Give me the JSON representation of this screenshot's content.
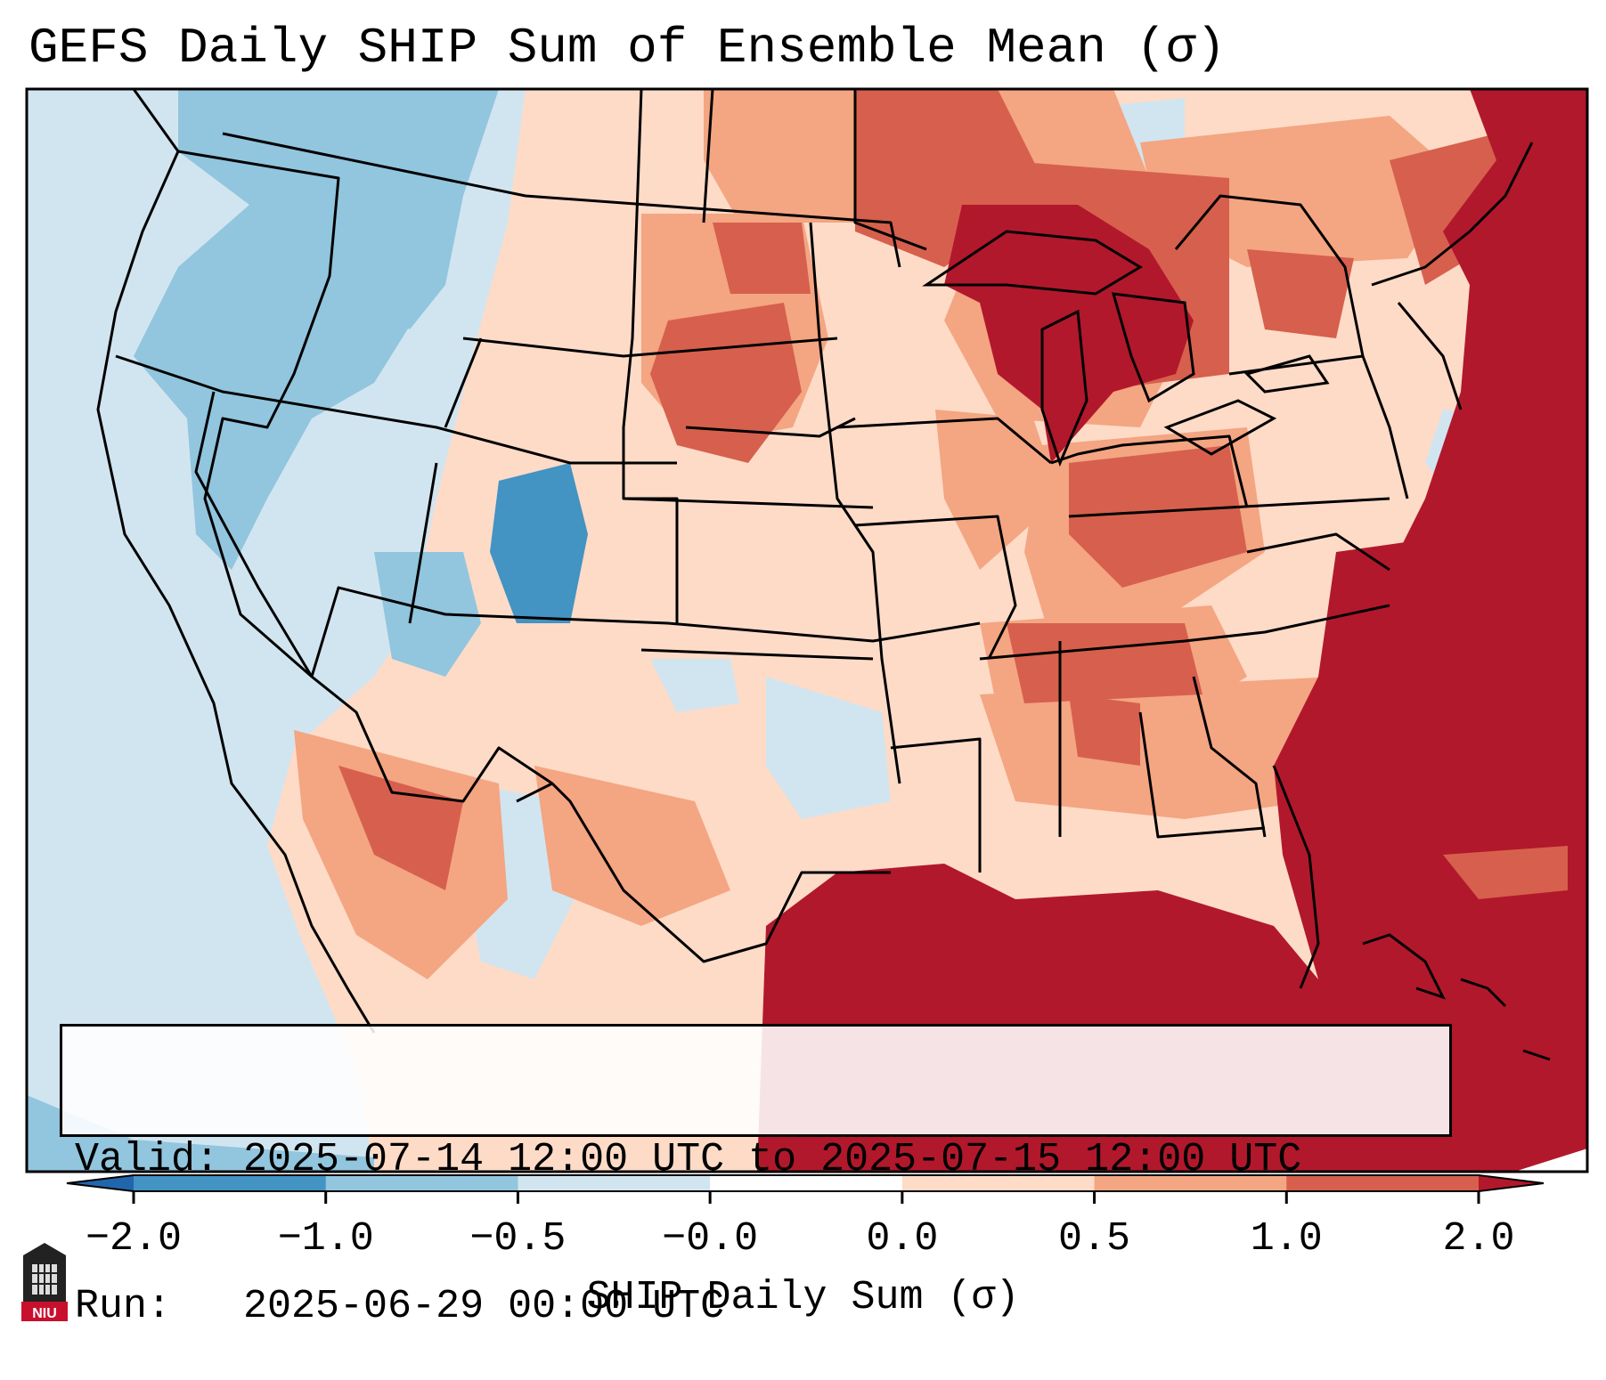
{
  "title": "GEFS Daily SHIP Sum of Ensemble Mean (σ)",
  "info": {
    "valid_line": "Valid: 2025-07-14 12:00 UTC to 2025-07-15 12:00 UTC",
    "run_line": "Run:   2025-06-29 00:00 UTC"
  },
  "colorbar": {
    "label": "SHIP Daily Sum (σ)",
    "ticks": [
      "−2.0",
      "−1.0",
      "−0.5",
      "−0.0",
      "0.0",
      "0.5",
      "1.0",
      "2.0"
    ],
    "colors": [
      "#4393c3",
      "#92c5de",
      "#d1e5f0",
      "#ffffff",
      "#fddbc7",
      "#f4a582",
      "#d6604d",
      "#b2182b"
    ],
    "under_color": "#2166ac",
    "over_color": "#b2182b"
  },
  "logo": {
    "text": "NIU"
  }
}
